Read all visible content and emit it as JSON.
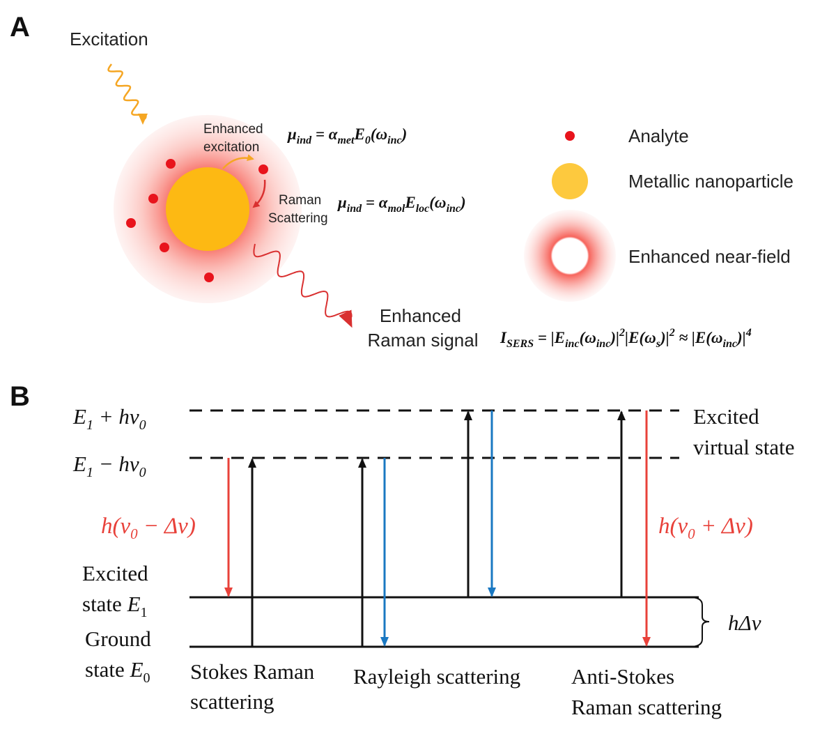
{
  "panel_a": {
    "label": "A",
    "excitation": "Excitation",
    "enhanced_excitation": [
      "Enhanced",
      "excitation"
    ],
    "raman_scattering": [
      "Raman",
      "Scattering"
    ],
    "enhanced_raman_signal": [
      "Enhanced",
      "Raman signal"
    ],
    "equations": [
      [
        "μ",
        "ind",
        " = ",
        "α",
        "met",
        "E",
        "0",
        "(ω",
        "inc",
        ")"
      ],
      [
        "μ",
        "ind",
        " = ",
        "α",
        "mol",
        "E",
        "loc",
        "(ω",
        "inc",
        ")"
      ],
      [
        "I",
        "SERS",
        " = |",
        "E",
        "inc",
        "(ω",
        "inc",
        ")|",
        "2",
        "|E(ω",
        "s",
        ")|",
        "2",
        " ≈ |E(ω",
        "inc",
        ")|",
        "4"
      ]
    ],
    "legend": [
      "Analyte",
      "Metallic nanoparticle",
      "Enhanced near-field"
    ]
  },
  "panel_b": {
    "label": "B",
    "upper_level": [
      "E",
      "1",
      " + hν",
      "0"
    ],
    "lower_level": [
      "E",
      "1",
      " − hν",
      "0"
    ],
    "virtual_state": [
      "Excited",
      "virtual state"
    ],
    "stokes_shift": [
      "h(ν",
      "0",
      " − Δν)"
    ],
    "anti_stokes_shift": [
      "h(ν",
      "0",
      " + Δν)"
    ],
    "excited_state": [
      "Excited",
      "state ",
      "E",
      "1"
    ],
    "ground_state": [
      "Ground",
      "state ",
      "E",
      "0"
    ],
    "gap": "hΔν",
    "processes": [
      [
        "Stokes Raman",
        "scattering"
      ],
      [
        "Rayleigh scattering"
      ],
      [
        "Anti-Stokes",
        "Raman scattering"
      ]
    ]
  }
}
